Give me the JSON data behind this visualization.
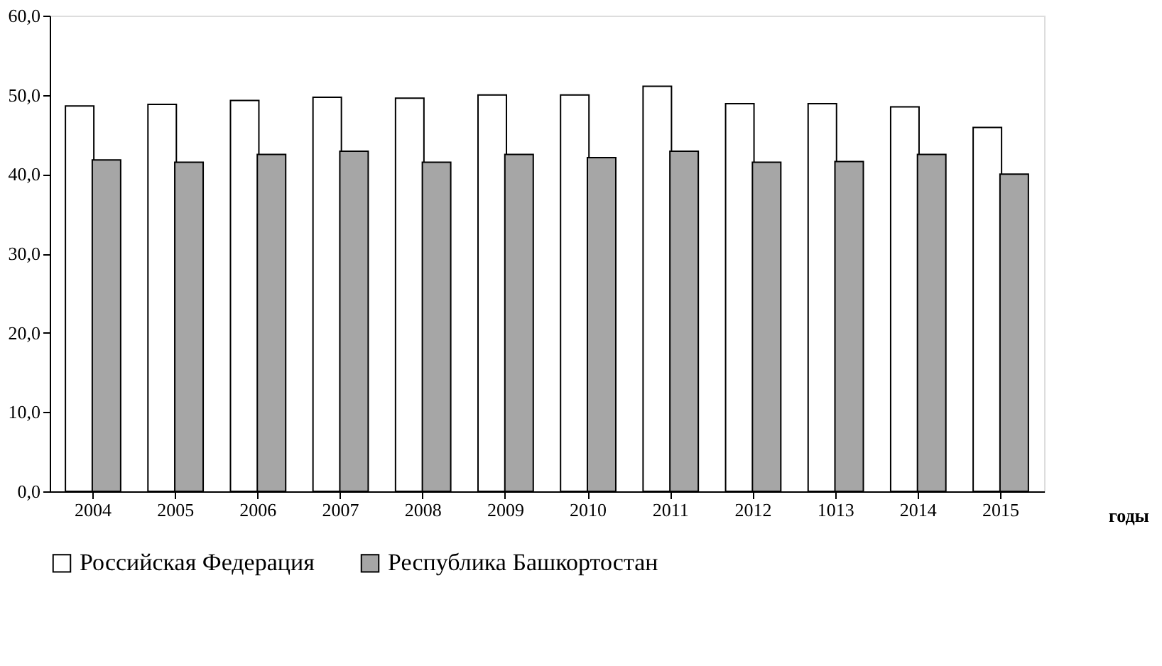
{
  "chart_data": {
    "type": "bar",
    "xlabel": "годы",
    "categories": [
      "2004",
      "2005",
      "2006",
      "2007",
      "2008",
      "2009",
      "2010",
      "2011",
      "2012",
      "1013",
      "2014",
      "2015"
    ],
    "series": [
      {
        "name": "Российская Федерация",
        "color": "#ffffff",
        "values": [
          48.6,
          48.8,
          49.3,
          49.7,
          49.6,
          50.0,
          50.0,
          51.1,
          48.9,
          48.9,
          48.5,
          45.9
        ]
      },
      {
        "name": "Республика Башкортостан",
        "color": "#a6a6a6",
        "values": [
          41.8,
          41.5,
          42.5,
          42.9,
          41.5,
          42.5,
          42.1,
          42.9,
          41.5,
          41.6,
          42.5,
          40.0
        ]
      }
    ],
    "ylim": [
      0,
      60
    ],
    "yticks": [
      {
        "value": 0,
        "label": "0,0"
      },
      {
        "value": 10,
        "label": "10,0"
      },
      {
        "value": 20,
        "label": "20,0"
      },
      {
        "value": 30,
        "label": "30,0"
      },
      {
        "value": 40,
        "label": "40,0"
      },
      {
        "value": 50,
        "label": "50,0"
      },
      {
        "value": 60,
        "label": "60,0"
      }
    ],
    "grid": false,
    "legend": "bottom"
  }
}
